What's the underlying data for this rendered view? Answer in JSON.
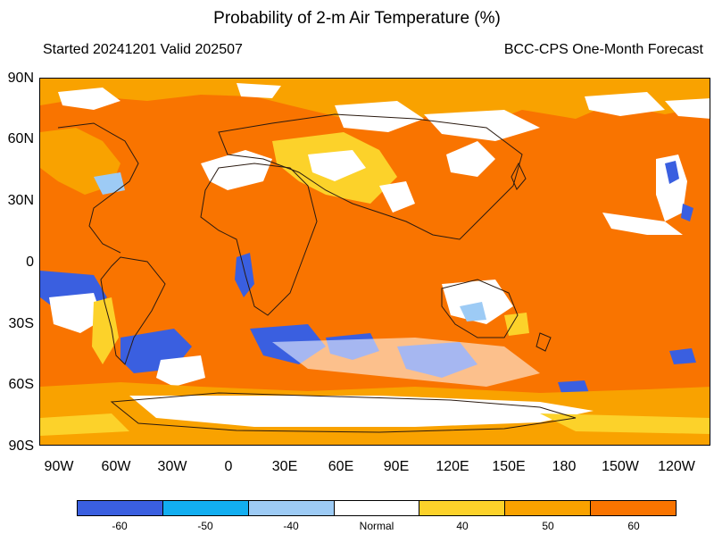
{
  "title": "Probability of 2-m Air Temperature (%)",
  "subtitle_left": "Started 20241201  Valid 202507",
  "subtitle_right": "BCC-CPS One-Month Forecast",
  "lat_labels": [
    "90N",
    "60N",
    "30N",
    "0",
    "30S",
    "60S",
    "90S"
  ],
  "lon_labels": [
    "90W",
    "60W",
    "30W",
    "0",
    "30E",
    "60E",
    "90E",
    "120E",
    "150E",
    "180",
    "150W",
    "120W"
  ],
  "colorbar": {
    "colors": [
      "#3a5fe0",
      "#12aef0",
      "#9dcbf5",
      "#ffffff",
      "#fcd22a",
      "#f9a200",
      "#f97400"
    ],
    "labels": [
      "-60",
      "-50",
      "-40",
      "Normal",
      "40",
      "50",
      "60"
    ]
  },
  "map_colors": {
    "ocean_base": "#f97400",
    "coast": "#2a1a10",
    "normal": "#ffffff",
    "cat_40": "#fcd22a",
    "cat_50": "#f9a200",
    "neg_60": "#3a5fe0",
    "neg_40": "#9dcbf5"
  }
}
